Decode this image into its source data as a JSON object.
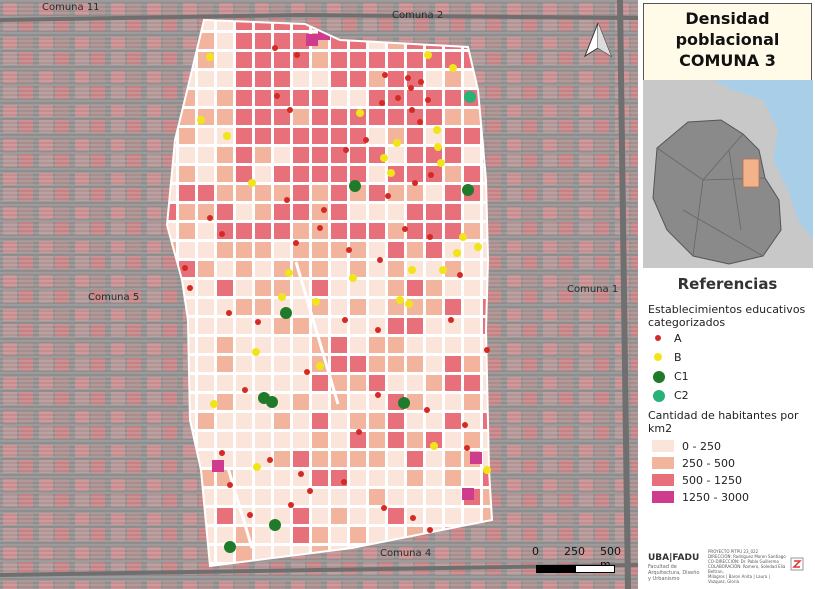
{
  "title": {
    "lines": [
      "Densidad",
      "poblacional",
      "COMUNA 3"
    ]
  },
  "map": {
    "labels": {
      "comuna_11": "Comuna 11",
      "comuna_2": "Comuna 2",
      "comuna_5": "Comuna 5",
      "comuna_1": "Comuna 1",
      "comuna_4": "Comuna 4"
    },
    "scale": [
      "0",
      "250",
      "500 m"
    ]
  },
  "legend": {
    "heading": "Referencias",
    "schools_title": "Establecimientos educativos categorizados",
    "schools": [
      {
        "label": "A",
        "color": "#d42a26"
      },
      {
        "label": "B",
        "color": "#f2e41b"
      },
      {
        "label": "C1",
        "color": "#1f7a2a"
      },
      {
        "label": "C2",
        "color": "#27b277"
      }
    ],
    "density_title": "Cantidad de habitantes por km2",
    "density": [
      {
        "label": "0 - 250",
        "color": "#fbe4d9"
      },
      {
        "label": "250 - 500",
        "color": "#f3b49d"
      },
      {
        "label": "500 - 1250",
        "color": "#e8707a"
      },
      {
        "label": "1250 - 3000",
        "color": "#cf3c8e"
      }
    ]
  },
  "credits": {
    "logo": "UBA|FADU",
    "logo_sub": "Facultad de Arquitectura, Diseño y Urbanismo",
    "lines": [
      "PROYECTO PITPU 23_022",
      "DIRECCIÓN: Rodríguez Moron Santiago",
      "CO-DIRECCIÓN: Dr. Pablo Guillermo",
      "COLABORACIÓN: Romero, Soledad Elia Beltran,",
      "Milagros | Baron Anita | Laura | Vazquez, Gloria"
    ]
  }
}
